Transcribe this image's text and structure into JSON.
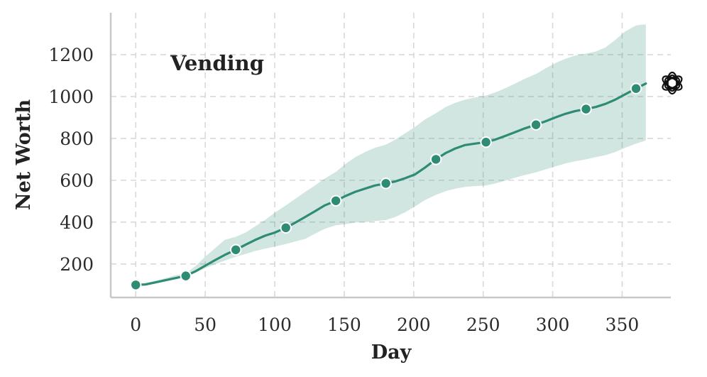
{
  "chart_data": {
    "type": "line",
    "title": "Vending",
    "xlabel": "Day",
    "ylabel": "Net Worth",
    "xlim": [
      -18,
      385
    ],
    "ylim": [
      40,
      1400
    ],
    "xticks": [
      0,
      50,
      100,
      150,
      200,
      250,
      300,
      350
    ],
    "yticks": [
      200,
      400,
      600,
      800,
      1000,
      1200
    ],
    "grid": true,
    "colors": {
      "line": "#2e8b74",
      "band": "#2e8b74",
      "marker_edge": "#ffffff"
    },
    "icon": "openai-logo-icon",
    "series": [
      {
        "x": [
          0,
          7,
          14,
          21,
          28,
          36,
          43,
          50,
          57,
          64,
          72,
          79,
          86,
          93,
          100,
          108,
          115,
          122,
          129,
          136,
          144,
          151,
          158,
          165,
          172,
          180,
          187,
          194,
          201,
          208,
          216,
          223,
          230,
          237,
          244,
          252,
          259,
          266,
          273,
          280,
          288,
          295,
          302,
          309,
          316,
          324,
          331,
          338,
          345,
          352,
          360,
          367
        ],
        "y": [
          100,
          102,
          112,
          122,
          132,
          143,
          165,
          192,
          218,
          243,
          268,
          292,
          315,
          335,
          350,
          373,
          398,
          425,
          452,
          480,
          502,
          525,
          545,
          560,
          575,
          585,
          595,
          610,
          628,
          660,
          700,
          730,
          752,
          768,
          775,
          782,
          795,
          812,
          830,
          848,
          865,
          882,
          900,
          917,
          930,
          940,
          950,
          965,
          985,
          1010,
          1038,
          1062
        ],
        "lower": [
          95,
          98,
          108,
          118,
          128,
          138,
          158,
          180,
          198,
          216,
          235,
          248,
          262,
          273,
          283,
          295,
          308,
          320,
          345,
          368,
          385,
          390,
          398,
          400,
          405,
          410,
          425,
          448,
          475,
          505,
          530,
          548,
          560,
          568,
          572,
          575,
          585,
          598,
          612,
          625,
          638,
          652,
          666,
          680,
          690,
          700,
          710,
          720,
          735,
          755,
          775,
          790
        ],
        "upper": [
          105,
          110,
          120,
          132,
          145,
          155,
          190,
          235,
          275,
          315,
          330,
          350,
          380,
          410,
          445,
          480,
          512,
          545,
          575,
          608,
          640,
          678,
          710,
          735,
          755,
          770,
          795,
          825,
          855,
          890,
          920,
          950,
          970,
          985,
          995,
          1005,
          1020,
          1040,
          1062,
          1085,
          1108,
          1135,
          1160,
          1180,
          1195,
          1205,
          1215,
          1235,
          1270,
          1310,
          1340,
          1345
        ]
      }
    ],
    "markers_at": [
      0,
      36,
      72,
      108,
      144,
      180,
      216,
      252,
      288,
      324,
      360
    ]
  }
}
